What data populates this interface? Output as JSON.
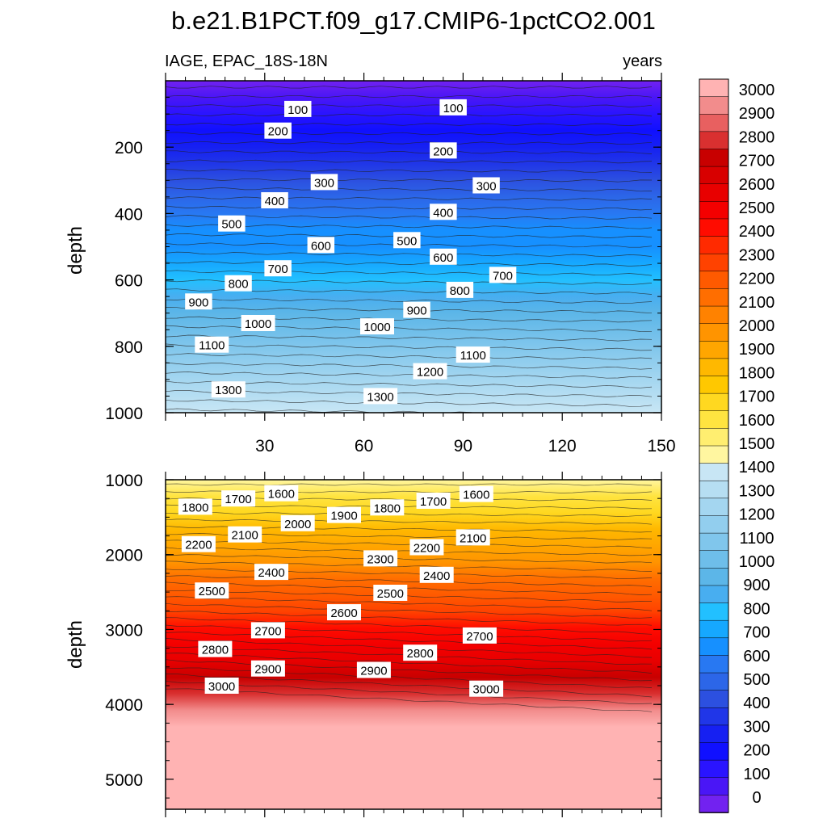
{
  "chart_data": {
    "type": "heatmap",
    "title": "b.e21.B1PCT.f09_g17.CMIP6-1pctCO2.001",
    "variable_label": "IAGE, EPAC_18S-18N",
    "units_label": "years",
    "panels": [
      {
        "name": "upper",
        "ylabel": "depth",
        "ylim": [
          0,
          1000
        ],
        "yticks": [
          200,
          400,
          600,
          800,
          1000
        ],
        "xlim": [
          0,
          150
        ],
        "xticks": [
          30,
          60,
          90,
          120,
          150
        ],
        "contour_labels": [
          {
            "text": "100",
            "x": 40,
            "y": 85
          },
          {
            "text": "100",
            "x": 87,
            "y": 80
          },
          {
            "text": "200",
            "x": 34,
            "y": 150
          },
          {
            "text": "200",
            "x": 84,
            "y": 210
          },
          {
            "text": "300",
            "x": 48,
            "y": 305
          },
          {
            "text": "300",
            "x": 97,
            "y": 315
          },
          {
            "text": "400",
            "x": 33,
            "y": 360
          },
          {
            "text": "400",
            "x": 84,
            "y": 395
          },
          {
            "text": "500",
            "x": 20,
            "y": 430
          },
          {
            "text": "500",
            "x": 73,
            "y": 480
          },
          {
            "text": "600",
            "x": 47,
            "y": 495
          },
          {
            "text": "600",
            "x": 84,
            "y": 530
          },
          {
            "text": "700",
            "x": 34,
            "y": 565
          },
          {
            "text": "700",
            "x": 102,
            "y": 585
          },
          {
            "text": "800",
            "x": 22,
            "y": 610
          },
          {
            "text": "800",
            "x": 89,
            "y": 630
          },
          {
            "text": "900",
            "x": 10,
            "y": 665
          },
          {
            "text": "900",
            "x": 76,
            "y": 690
          },
          {
            "text": "1000",
            "x": 28,
            "y": 730
          },
          {
            "text": "1000",
            "x": 64,
            "y": 740
          },
          {
            "text": "1100",
            "x": 14,
            "y": 795
          },
          {
            "text": "1100",
            "x": 93,
            "y": 825
          },
          {
            "text": "1200",
            "x": 80,
            "y": 875
          },
          {
            "text": "1300",
            "x": 19,
            "y": 930
          },
          {
            "text": "1300",
            "x": 65,
            "y": 950
          }
        ]
      },
      {
        "name": "lower",
        "ylabel": "depth",
        "ylim": [
          1000,
          5400
        ],
        "yticks": [
          1000,
          2000,
          3000,
          4000,
          5000
        ],
        "xlim": [
          0,
          150
        ],
        "contour_labels": [
          {
            "text": "1600",
            "x": 35,
            "y": 1180
          },
          {
            "text": "1600",
            "x": 94,
            "y": 1190
          },
          {
            "text": "1700",
            "x": 22,
            "y": 1250
          },
          {
            "text": "1700",
            "x": 81,
            "y": 1280
          },
          {
            "text": "1800",
            "x": 9,
            "y": 1360
          },
          {
            "text": "1800",
            "x": 67,
            "y": 1370
          },
          {
            "text": "1900",
            "x": 54,
            "y": 1470
          },
          {
            "text": "2000",
            "x": 40,
            "y": 1580
          },
          {
            "text": "2100",
            "x": 24,
            "y": 1730
          },
          {
            "text": "2100",
            "x": 93,
            "y": 1770
          },
          {
            "text": "2200",
            "x": 10,
            "y": 1860
          },
          {
            "text": "2200",
            "x": 79,
            "y": 1900
          },
          {
            "text": "2300",
            "x": 65,
            "y": 2050
          },
          {
            "text": "2400",
            "x": 32,
            "y": 2230
          },
          {
            "text": "2400",
            "x": 82,
            "y": 2270
          },
          {
            "text": "2500",
            "x": 14,
            "y": 2480
          },
          {
            "text": "2500",
            "x": 68,
            "y": 2510
          },
          {
            "text": "2600",
            "x": 54,
            "y": 2770
          },
          {
            "text": "2700",
            "x": 31,
            "y": 3010
          },
          {
            "text": "2700",
            "x": 95,
            "y": 3080
          },
          {
            "text": "2800",
            "x": 15,
            "y": 3260
          },
          {
            "text": "2800",
            "x": 77,
            "y": 3310
          },
          {
            "text": "2900",
            "x": 31,
            "y": 3520
          },
          {
            "text": "2900",
            "x": 63,
            "y": 3540
          },
          {
            "text": "3000",
            "x": 17,
            "y": 3750
          },
          {
            "text": "3000",
            "x": 97,
            "y": 3790
          }
        ]
      }
    ],
    "colorbar": {
      "labels": [
        "3000",
        "2900",
        "2800",
        "2700",
        "2600",
        "2500",
        "2400",
        "2300",
        "2200",
        "2100",
        "2000",
        "1900",
        "1800",
        "1700",
        "1600",
        "1500",
        "1400",
        "1300",
        "1200",
        "1100",
        "1000",
        "900",
        "800",
        "700",
        "600",
        "500",
        "400",
        "300",
        "200",
        "100",
        "0"
      ]
    }
  },
  "palette": {
    "top_to_bottom": [
      "#ffb3b3",
      "#f28c8c",
      "#e86060",
      "#d93030",
      "#c80000",
      "#d80000",
      "#e80000",
      "#f40000",
      "#ff0c00",
      "#ff2a00",
      "#ff4200",
      "#ff5a00",
      "#ff6e00",
      "#ff8200",
      "#ff9400",
      "#ffa600",
      "#ffb800",
      "#ffc800",
      "#ffd820",
      "#ffe440",
      "#ffee70",
      "#fff6a0",
      "#c8e6f5",
      "#b6def2",
      "#a4d6f0",
      "#92ceee",
      "#80c6ec",
      "#6ebeea",
      "#5cb6e8",
      "#48aef0",
      "#22c0ff",
      "#16a8ff",
      "#1690ff",
      "#2878f2",
      "#2c66e8",
      "#2c50e0",
      "#2036e8",
      "#1620f2",
      "#1010ff",
      "#2a14ff",
      "#4a16f6",
      "#7222f0"
    ]
  }
}
